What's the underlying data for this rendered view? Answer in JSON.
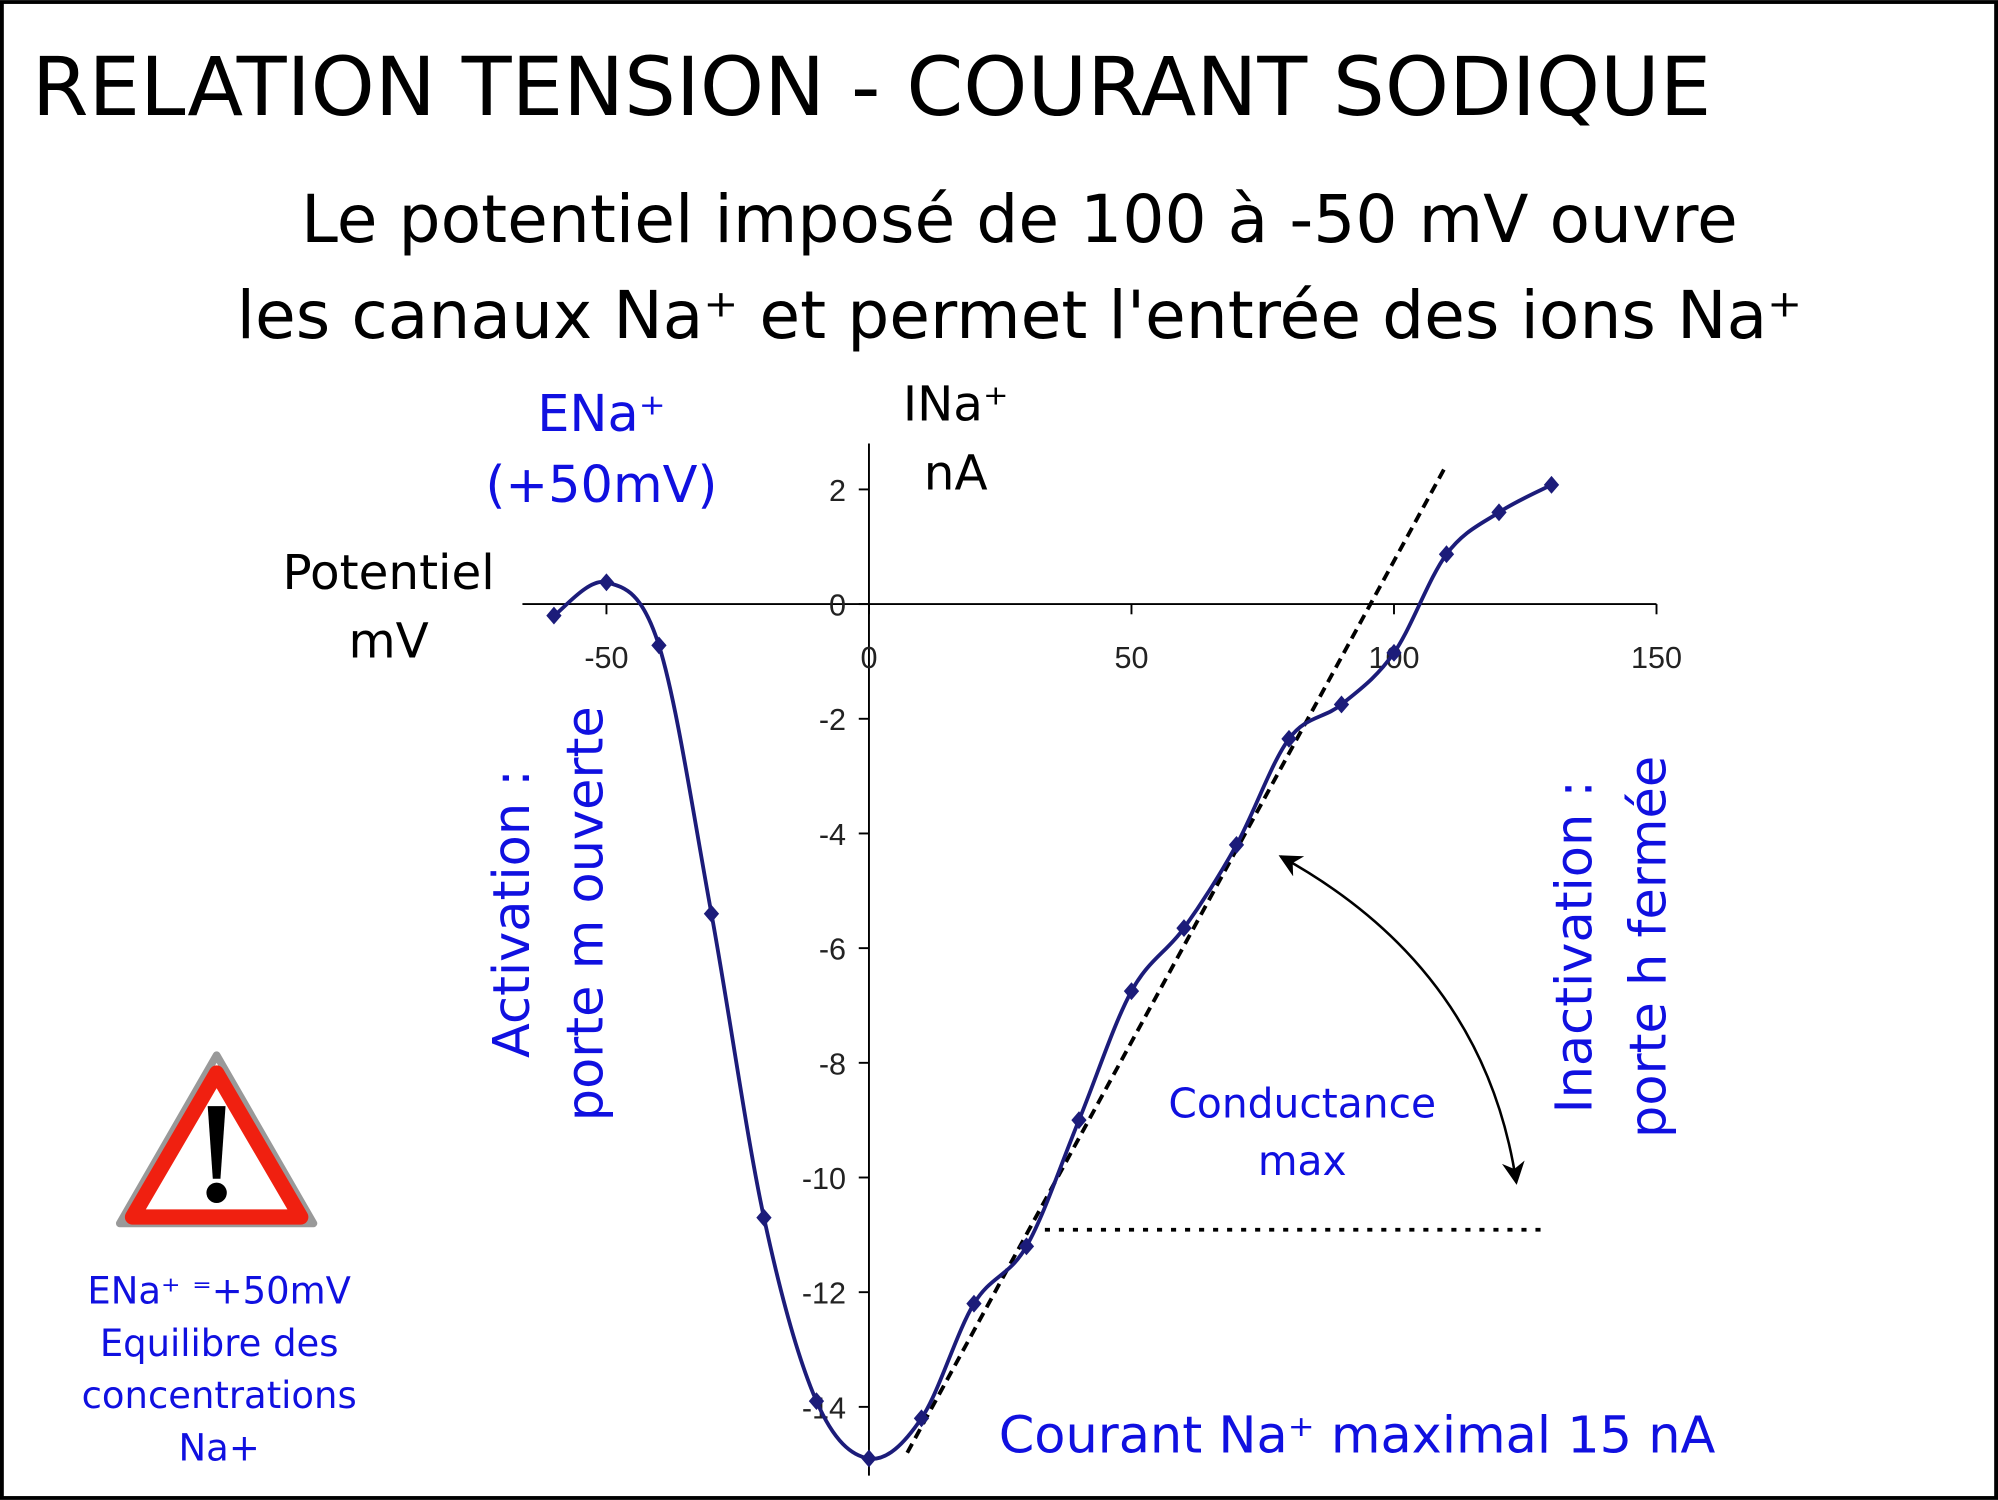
{
  "chart_data": {
    "type": "line",
    "title": "RELATION TENSION - COURANT SODIQUE",
    "subtitle": [
      "Le potentiel imposé de 100 à -50 mV ouvre",
      "les canaux Na⁺ et permet l'entrée des ions Na⁺"
    ],
    "x_label": [
      "Potentiel",
      "mV"
    ],
    "y_label": [
      "INa⁺",
      "nA"
    ],
    "x": [
      -60,
      -50,
      -40,
      -30,
      -20,
      -10,
      0,
      10,
      20,
      30,
      40,
      50,
      60,
      70,
      80,
      90,
      100,
      110,
      120,
      130
    ],
    "series": [
      {
        "color": "#1c1c7a",
        "values": [
          -0.2,
          0.38,
          -0.72,
          -5.4,
          -10.7,
          -13.9,
          -14.9,
          -14.2,
          -12.2,
          -11.2,
          -9.0,
          -6.75,
          -5.65,
          -4.2,
          -2.35,
          -1.75,
          -0.85,
          0.87,
          1.6,
          2.08
        ]
      }
    ],
    "xlim": [
      -66,
      150
    ],
    "ylim": [
      -15.2,
      2.8
    ],
    "xticks": [
      -50,
      0,
      50,
      100,
      150
    ],
    "yticks": [
      -14,
      -12,
      -10,
      -8,
      -6,
      -4,
      -2,
      0,
      2
    ],
    "annotations": [
      {
        "lines": [
          "ENa⁺",
          "(+50mV)"
        ],
        "color": "#1010e0"
      },
      {
        "lines": [
          "Activation :",
          "porte m ouverte"
        ],
        "color": "#1010e0"
      },
      {
        "lines": [
          "Inactivation :",
          "porte h fermée"
        ],
        "color": "#1010e0"
      },
      {
        "lines": [
          "Conductance",
          "max"
        ],
        "color": "#1010e0"
      },
      {
        "lines": [
          "Courant Na⁺ maximal 15 nA"
        ],
        "color": "#1010e0"
      },
      {
        "lines": [
          "ENa⁺ ⁼+50mV",
          "Equilibre des",
          "concentrations",
          "Na+"
        ],
        "color": "#1010e0"
      }
    ]
  }
}
